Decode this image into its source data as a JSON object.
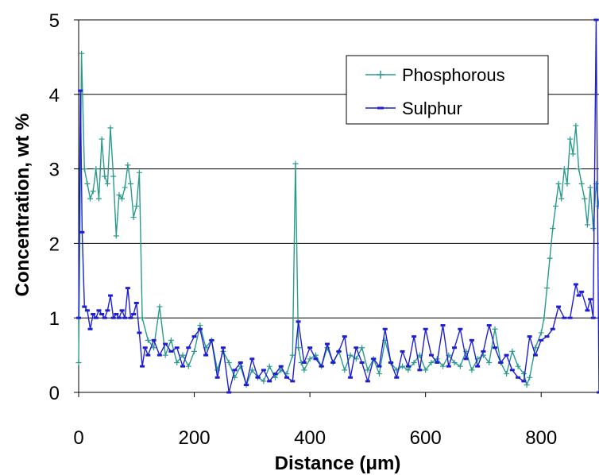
{
  "chart_data": {
    "type": "line",
    "title": "",
    "xlabel": "Distance (μm)",
    "ylabel": "Concentration, wt %",
    "xlim": [
      0,
      900
    ],
    "ylim": [
      0,
      5
    ],
    "xticks": [
      "0",
      "200",
      "400",
      "600",
      "800"
    ],
    "yticks": [
      "0",
      "1",
      "2",
      "3",
      "4",
      "5"
    ],
    "grid": "horizontal",
    "legend_position": "top-right",
    "series": [
      {
        "name": "Phosphorous",
        "color": "#2a9a8c",
        "marker": "plus",
        "x": [
          0,
          5,
          10,
          15,
          20,
          25,
          30,
          35,
          40,
          45,
          50,
          55,
          60,
          65,
          70,
          75,
          80,
          85,
          90,
          95,
          100,
          105,
          110,
          120,
          130,
          140,
          150,
          160,
          170,
          180,
          190,
          200,
          210,
          220,
          230,
          240,
          250,
          260,
          270,
          280,
          290,
          300,
          310,
          320,
          330,
          340,
          350,
          360,
          370,
          375,
          380,
          385,
          390,
          400,
          410,
          420,
          430,
          440,
          450,
          460,
          470,
          480,
          490,
          500,
          510,
          520,
          530,
          540,
          550,
          560,
          570,
          580,
          590,
          600,
          610,
          620,
          630,
          640,
          650,
          660,
          670,
          680,
          690,
          700,
          710,
          720,
          730,
          740,
          750,
          760,
          770,
          775,
          780,
          790,
          800,
          805,
          810,
          815,
          820,
          825,
          830,
          835,
          840,
          845,
          850,
          855,
          860,
          865,
          870,
          875,
          880,
          885,
          890,
          895,
          900
        ],
        "values": [
          0.4,
          4.55,
          3.0,
          2.8,
          2.6,
          2.7,
          3.0,
          2.6,
          3.4,
          2.9,
          2.8,
          3.55,
          2.9,
          2.1,
          2.65,
          2.6,
          2.75,
          3.05,
          2.8,
          2.35,
          2.5,
          2.95,
          1.0,
          0.7,
          0.6,
          1.15,
          0.5,
          0.7,
          0.4,
          0.5,
          0.35,
          0.55,
          0.9,
          0.6,
          0.7,
          0.3,
          0.55,
          0.4,
          0.2,
          0.35,
          0.1,
          0.3,
          0.2,
          0.15,
          0.35,
          0.2,
          0.3,
          0.25,
          0.5,
          3.07,
          0.6,
          0.4,
          0.3,
          0.45,
          0.5,
          0.35,
          0.6,
          0.4,
          0.55,
          0.3,
          0.5,
          0.45,
          0.6,
          0.3,
          0.45,
          0.25,
          0.7,
          0.4,
          0.3,
          0.35,
          0.3,
          0.4,
          0.5,
          0.3,
          0.4,
          0.45,
          0.35,
          0.5,
          0.4,
          0.35,
          0.55,
          0.3,
          0.45,
          0.5,
          0.4,
          0.85,
          0.4,
          0.25,
          0.55,
          0.35,
          0.25,
          0.1,
          0.2,
          0.6,
          0.8,
          1.0,
          1.4,
          1.8,
          2.2,
          2.5,
          2.8,
          2.6,
          3.0,
          2.8,
          3.4,
          3.2,
          3.58,
          3.0,
          2.8,
          2.6,
          2.25,
          2.75,
          2.2,
          2.8,
          2.5
        ]
      },
      {
        "name": "Sulphur",
        "color": "#1f1fd0",
        "marker": "dash",
        "x": [
          0,
          3,
          6,
          10,
          15,
          20,
          25,
          30,
          35,
          40,
          45,
          50,
          55,
          60,
          65,
          70,
          75,
          80,
          85,
          90,
          95,
          100,
          105,
          110,
          115,
          120,
          130,
          140,
          150,
          160,
          170,
          180,
          190,
          200,
          210,
          220,
          230,
          240,
          250,
          260,
          270,
          280,
          290,
          300,
          310,
          320,
          330,
          340,
          350,
          360,
          370,
          380,
          390,
          400,
          410,
          420,
          430,
          440,
          450,
          460,
          470,
          480,
          490,
          500,
          510,
          520,
          530,
          540,
          550,
          560,
          570,
          580,
          590,
          600,
          610,
          620,
          630,
          640,
          650,
          660,
          670,
          680,
          690,
          700,
          710,
          720,
          730,
          740,
          750,
          760,
          770,
          780,
          790,
          800,
          810,
          820,
          830,
          840,
          850,
          860,
          865,
          870,
          880,
          885,
          890,
          895,
          900
        ],
        "values": [
          1.0,
          4.05,
          2.15,
          1.15,
          1.1,
          0.85,
          1.05,
          1.0,
          1.1,
          1.05,
          1.0,
          1.1,
          1.3,
          1.0,
          1.05,
          1.0,
          1.1,
          1.0,
          1.4,
          1.0,
          1.05,
          1.2,
          0.8,
          0.35,
          0.6,
          0.5,
          0.7,
          0.5,
          0.65,
          0.55,
          0.6,
          0.35,
          0.6,
          0.75,
          0.85,
          0.5,
          0.7,
          0.2,
          0.6,
          0.0,
          0.3,
          0.4,
          0.1,
          0.45,
          0.2,
          0.3,
          0.15,
          0.25,
          0.35,
          0.2,
          0.15,
          0.95,
          0.4,
          0.6,
          0.45,
          0.35,
          0.65,
          0.4,
          0.55,
          0.75,
          0.2,
          0.6,
          0.4,
          0.15,
          0.45,
          0.35,
          0.85,
          0.4,
          0.2,
          0.55,
          0.35,
          0.75,
          0.3,
          0.85,
          0.5,
          0.4,
          0.9,
          0.35,
          0.6,
          0.85,
          0.45,
          0.7,
          0.35,
          0.55,
          0.9,
          0.6,
          0.4,
          0.5,
          0.3,
          0.2,
          0.15,
          0.75,
          0.5,
          0.7,
          0.75,
          0.85,
          1.15,
          1.0,
          1.0,
          1.45,
          1.3,
          1.35,
          1.1,
          1.25,
          1.0,
          5.0,
          0.0
        ]
      }
    ]
  }
}
